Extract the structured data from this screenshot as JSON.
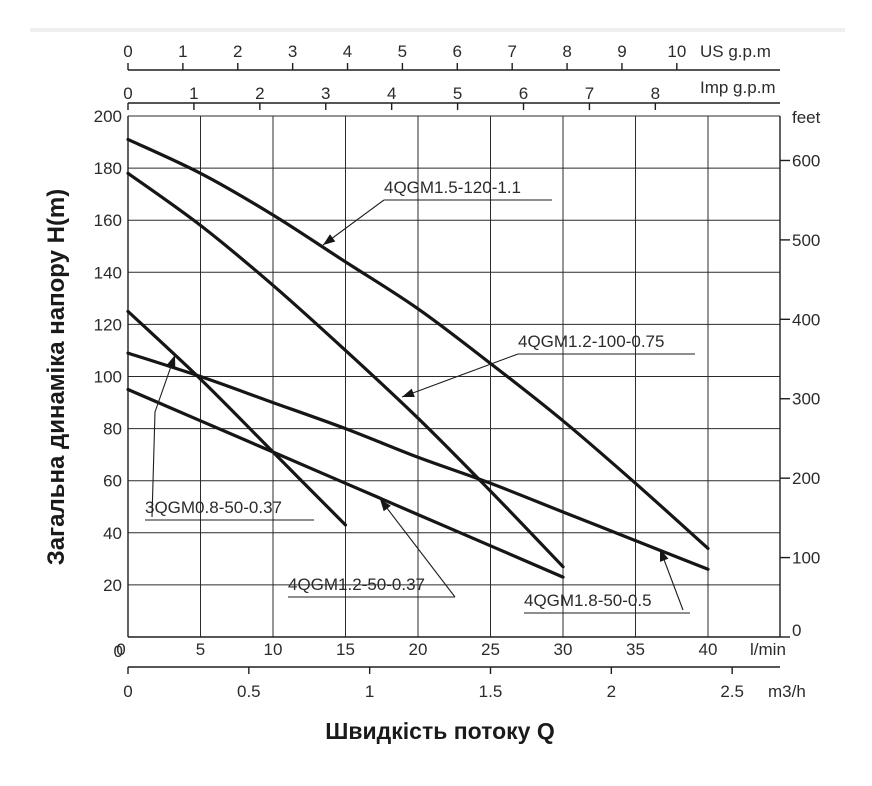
{
  "chart_data": {
    "type": "line",
    "ylabel": "Загальна динаміка напору H(m)",
    "xlabel": "Швидкість потоку Q",
    "xlim": [
      0,
      40
    ],
    "ylim": [
      0,
      200
    ],
    "grid": true,
    "x_unit": "l/min",
    "x_ticks": [
      0,
      5,
      10,
      15,
      20,
      25,
      30,
      35,
      40
    ],
    "y_ticks": [
      20,
      40,
      60,
      80,
      100,
      120,
      140,
      160,
      180,
      200
    ],
    "zero_label": "0",
    "axes_secondary": {
      "right": {
        "unit": "feet",
        "ticks": [
          0,
          100,
          200,
          300,
          400,
          500,
          600
        ],
        "factor": 3.28
      },
      "top_us": {
        "unit": "US g.p.m",
        "ticks": [
          0,
          1,
          2,
          3,
          4,
          5,
          6,
          7,
          8,
          9,
          10
        ],
        "factor": 0.2642
      },
      "top_imp": {
        "unit": "Imp g.p.m",
        "ticks": [
          0,
          1,
          2,
          3,
          4,
          5,
          6,
          7,
          8
        ],
        "factor": 0.21997
      },
      "bottom_m3h": {
        "unit": "m3/h",
        "ticks": [
          "0",
          "0.5",
          "1",
          "1.5",
          "2",
          "2.5"
        ],
        "values": [
          0,
          0.5,
          1,
          1.5,
          2,
          2.5
        ],
        "factor": 0.06
      }
    },
    "series": [
      {
        "name": "4QGM1.5-120-1.1",
        "x": [
          0,
          5,
          10,
          15,
          20,
          25,
          30,
          35,
          40
        ],
        "y": [
          191,
          178,
          162,
          144,
          126,
          105,
          83,
          59,
          34
        ]
      },
      {
        "name": "4QGM1.2-100-0.75",
        "x": [
          0,
          5,
          10,
          15,
          20,
          25,
          30
        ],
        "y": [
          178,
          158,
          135,
          110,
          84,
          56,
          27
        ]
      },
      {
        "name": "3QGM0.8-50-0.37",
        "x": [
          0,
          5,
          10,
          15
        ],
        "y": [
          125,
          99,
          71,
          43
        ]
      },
      {
        "name": "4QGM1.2-50-0.37",
        "x": [
          0,
          5,
          10,
          15,
          20,
          25,
          30
        ],
        "y": [
          95,
          83,
          71,
          59,
          47,
          35,
          23
        ]
      },
      {
        "name": "4QGM1.8-50-0.5",
        "x": [
          0,
          5,
          10,
          15,
          20,
          25,
          30,
          35,
          40
        ],
        "y": [
          109,
          100,
          90,
          80,
          69,
          59,
          48,
          37,
          26
        ]
      }
    ]
  }
}
